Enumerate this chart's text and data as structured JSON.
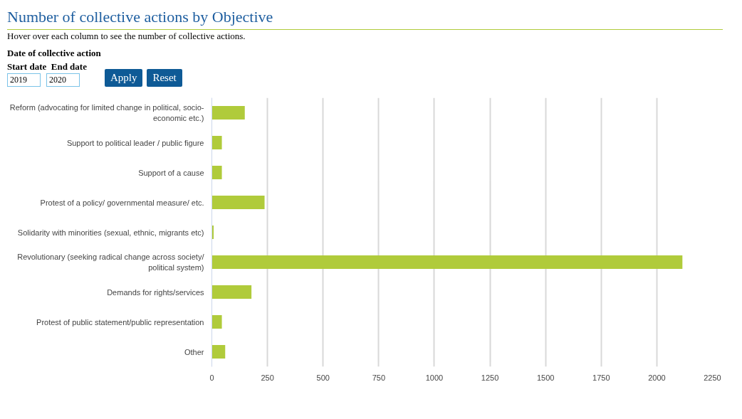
{
  "chart_data": {
    "type": "bar",
    "orientation": "horizontal",
    "title": "Number of collective actions by Objective",
    "subtitle": "Hover over each column to see the number of collective actions.",
    "annotations": [
      "Date of collective action",
      "Start date",
      "End date",
      "2019",
      "2020",
      "Apply",
      "Reset"
    ],
    "categories": [
      "Reform (advocating for limited change in political, socio-economic etc.)",
      "Support to political leader / public figure",
      "Support of a cause",
      "Protest of a policy/ governmental measure/ etc.",
      "Solidarity with minorities (sexual, ethnic, migrants etc)",
      "Revolutionary (seeking radical change across society/ political system)",
      "Demands for rights/services",
      "Protest of public statement/public representation",
      "Other"
    ],
    "values": [
      148,
      45,
      45,
      237,
      8,
      2115,
      178,
      45,
      60
    ],
    "color": "#b0cb3b",
    "xlim": [
      0,
      2250
    ],
    "xticks": [
      0,
      250,
      500,
      750,
      1000,
      1250,
      1500,
      1750,
      2000,
      2250
    ],
    "grid": "x"
  }
}
